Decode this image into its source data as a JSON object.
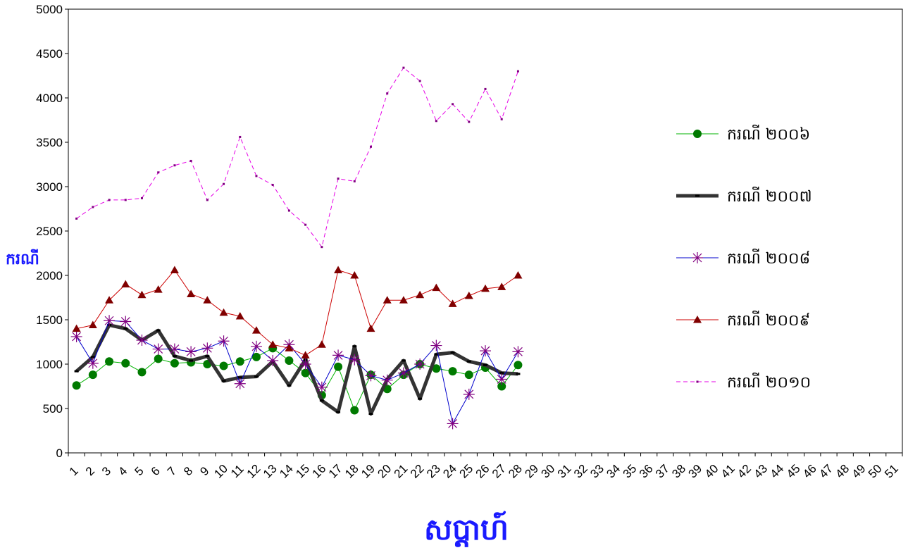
{
  "chart_data": {
    "type": "line",
    "title": "",
    "xlabel": "សប្តាហ៍",
    "ylabel": "ករណី",
    "axis_title_color": "#1a1aff",
    "ylim": [
      0,
      5000
    ],
    "yticks": [
      0,
      500,
      1000,
      1500,
      2000,
      2500,
      3000,
      3500,
      4000,
      4500,
      5000
    ],
    "x_categories": [
      1,
      2,
      3,
      4,
      5,
      6,
      7,
      8,
      9,
      10,
      11,
      12,
      13,
      14,
      15,
      16,
      17,
      18,
      19,
      20,
      21,
      22,
      23,
      24,
      25,
      26,
      27,
      28,
      29,
      30,
      31,
      32,
      33,
      34,
      35,
      36,
      37,
      38,
      39,
      40,
      41,
      42,
      43,
      44,
      45,
      46,
      47,
      48,
      49,
      50,
      51
    ],
    "grid": false,
    "legend_position": "right",
    "series": [
      {
        "name": "ករណី ២០០៦",
        "color": "#00b300",
        "marker_color": "#007a00",
        "marker": "circle",
        "line_style": "solid",
        "line_width": 1,
        "values": [
          760,
          880,
          1030,
          1010,
          910,
          1060,
          1010,
          1020,
          1000,
          980,
          1030,
          1080,
          1180,
          1040,
          900,
          650,
          970,
          480,
          880,
          720,
          880,
          1000,
          950,
          920,
          880,
          960,
          750,
          990
        ]
      },
      {
        "name": "ករណី ២០០៧",
        "color": "#333333",
        "marker_color": "#000000",
        "marker": "dash",
        "line_style": "solid",
        "line_width": 5,
        "values": [
          920,
          1080,
          1440,
          1400,
          1270,
          1380,
          1090,
          1040,
          1090,
          810,
          850,
          860,
          1030,
          760,
          1050,
          590,
          460,
          1200,
          440,
          830,
          1040,
          610,
          1110,
          1130,
          1030,
          990,
          900,
          890
        ]
      },
      {
        "name": "ករណី ២០០៨",
        "color": "#0000cc",
        "marker_color": "#800080",
        "marker": "asterisk",
        "line_style": "solid",
        "line_width": 1,
        "values": [
          1310,
          1010,
          1490,
          1480,
          1270,
          1170,
          1170,
          1140,
          1180,
          1260,
          780,
          1200,
          1040,
          1220,
          1000,
          740,
          1100,
          1050,
          870,
          820,
          900,
          1000,
          1210,
          330,
          660,
          1150,
          830,
          1140
        ]
      },
      {
        "name": "ករណី ២០០៩",
        "color": "#cc0000",
        "marker_color": "#800000",
        "marker": "triangle",
        "line_style": "solid",
        "line_width": 1,
        "values": [
          1400,
          1440,
          1720,
          1900,
          1780,
          1840,
          2060,
          1790,
          1720,
          1580,
          1540,
          1380,
          1220,
          1180,
          1100,
          1220,
          2060,
          2000,
          1400,
          1720,
          1720,
          1780,
          1860,
          1680,
          1770,
          1850,
          1870,
          2000
        ]
      },
      {
        "name": "ករណី ២០១០",
        "color": "#e600e6",
        "marker_color": "#800080",
        "marker": "square",
        "line_style": "dashed",
        "line_width": 1,
        "values": [
          2640,
          2770,
          2850,
          2850,
          2870,
          3160,
          3240,
          3290,
          2850,
          3030,
          3560,
          3120,
          3020,
          2730,
          2570,
          2320,
          3090,
          3060,
          3450,
          4050,
          4340,
          4190,
          3740,
          3930,
          3730,
          4100,
          3760,
          4300
        ]
      }
    ]
  }
}
